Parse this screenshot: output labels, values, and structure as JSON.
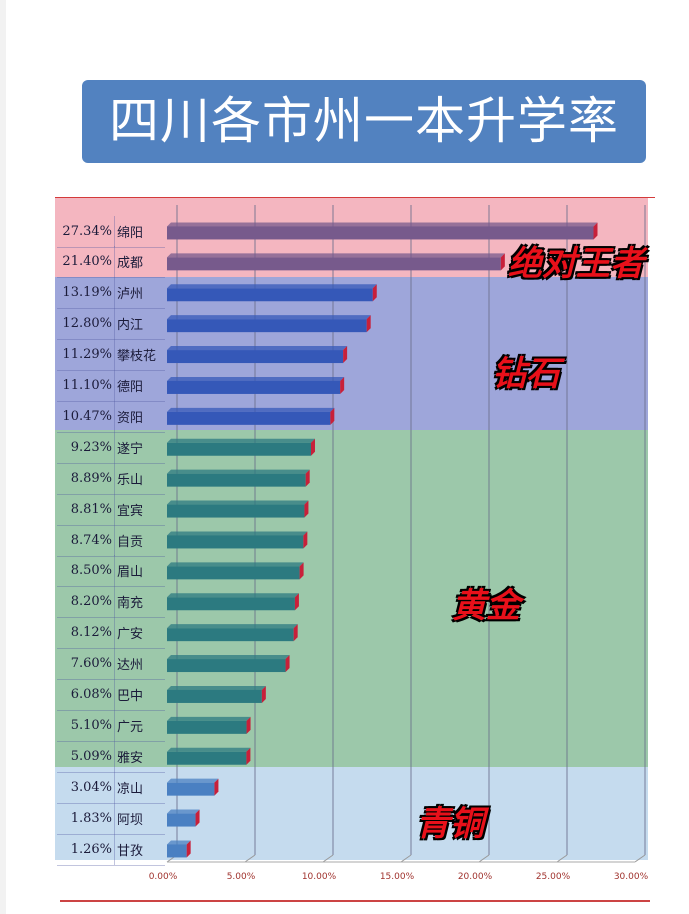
{
  "title": "四川各市州一本升学率",
  "chart_data": {
    "type": "bar",
    "orientation": "horizontal",
    "categories": [
      "绵阳",
      "成都",
      "泸州",
      "内江",
      "攀枝花",
      "德阳",
      "资阳",
      "遂宁",
      "乐山",
      "宜宾",
      "自贡",
      "眉山",
      "南充",
      "广安",
      "达州",
      "巴中",
      "广元",
      "雅安",
      "凉山",
      "阿坝",
      "甘孜"
    ],
    "values": [
      27.34,
      21.4,
      13.19,
      12.8,
      11.29,
      11.1,
      10.47,
      9.23,
      8.89,
      8.81,
      8.74,
      8.5,
      8.2,
      8.12,
      7.6,
      6.08,
      5.1,
      5.09,
      3.04,
      1.83,
      1.26
    ],
    "value_labels": [
      "27.34%",
      "21.40%",
      "13.19%",
      "12.80%",
      "11.29%",
      "11.10%",
      "10.47%",
      "9.23%",
      "8.89%",
      "8.81%",
      "8.74%",
      "8.50%",
      "8.20%",
      "8.12%",
      "7.60%",
      "6.08%",
      "5.10%",
      "5.09%",
      "3.04%",
      "1.83%",
      "1.26%"
    ],
    "xlim": [
      0,
      30
    ],
    "x_ticks": [
      "0.00%",
      "5.00%",
      "10.00%",
      "15.00%",
      "20.00%",
      "25.00%",
      "30.00%"
    ],
    "grid": true,
    "tiers": [
      {
        "label": "绝对王者",
        "rows": [
          0,
          1
        ],
        "band_color": "#f4b6c0",
        "bar_color": "#775a8c"
      },
      {
        "label": "钻石",
        "rows": [
          2,
          6
        ],
        "band_color": "#9ea6da",
        "bar_color": "#3558b8"
      },
      {
        "label": "黄金",
        "rows": [
          7,
          17
        ],
        "band_color": "#9cc8aa",
        "bar_color": "#2c7a80"
      },
      {
        "label": "青铜",
        "rows": [
          18,
          20
        ],
        "band_color": "#c5dbee",
        "bar_color": "#4a80c2"
      }
    ]
  }
}
